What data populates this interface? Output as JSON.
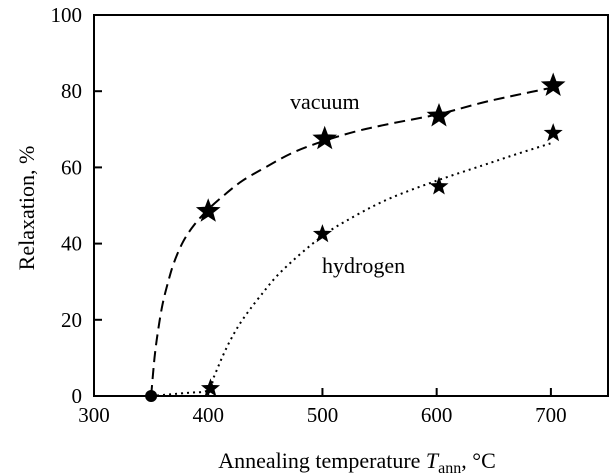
{
  "chart_data": {
    "type": "scatter",
    "title": "",
    "xlabel": {
      "prefix": "Annealing temperature ",
      "var": "T",
      "sub": "ann",
      "suffix": ", °C"
    },
    "ylabel": "Relaxation, %",
    "xlim": [
      300,
      750
    ],
    "ylim": [
      0,
      100
    ],
    "xticks": [
      300,
      400,
      500,
      600,
      700
    ],
    "yticks": [
      0,
      20,
      40,
      60,
      80,
      100
    ],
    "grid": false,
    "start_point": {
      "x": 350,
      "y": 0
    },
    "series": [
      {
        "name": "vacuum",
        "line_style": "dashed",
        "marker": "star",
        "x": [
          400,
          502,
          602,
          702
        ],
        "y": [
          48.5,
          67.5,
          73.5,
          81.5
        ],
        "curve_x": [
          350,
          353,
          356,
          360,
          365,
          370,
          378,
          388,
          400,
          415,
          430,
          450,
          475,
          502,
          530,
          560,
          602,
          640,
          670,
          702
        ],
        "curve_y": [
          0,
          10,
          17,
          24,
          30,
          35,
          40.5,
          45,
          49,
          53,
          56.5,
          60,
          64,
          67,
          69.5,
          71.5,
          74,
          77,
          79,
          81
        ]
      },
      {
        "name": "hydrogen",
        "line_style": "dotted",
        "marker": "star",
        "x": [
          402,
          500,
          602,
          702
        ],
        "y": [
          2,
          42.5,
          55,
          69
        ],
        "curve_x": [
          350,
          380,
          400,
          405,
          412,
          420,
          430,
          445,
          465,
          500,
          530,
          560,
          600,
          640,
          670,
          702
        ],
        "curve_y": [
          0,
          0.8,
          1.5,
          5,
          10,
          15,
          20,
          26,
          33,
          42,
          47.5,
          52,
          56.5,
          60.5,
          63.5,
          66.5
        ]
      }
    ]
  }
}
